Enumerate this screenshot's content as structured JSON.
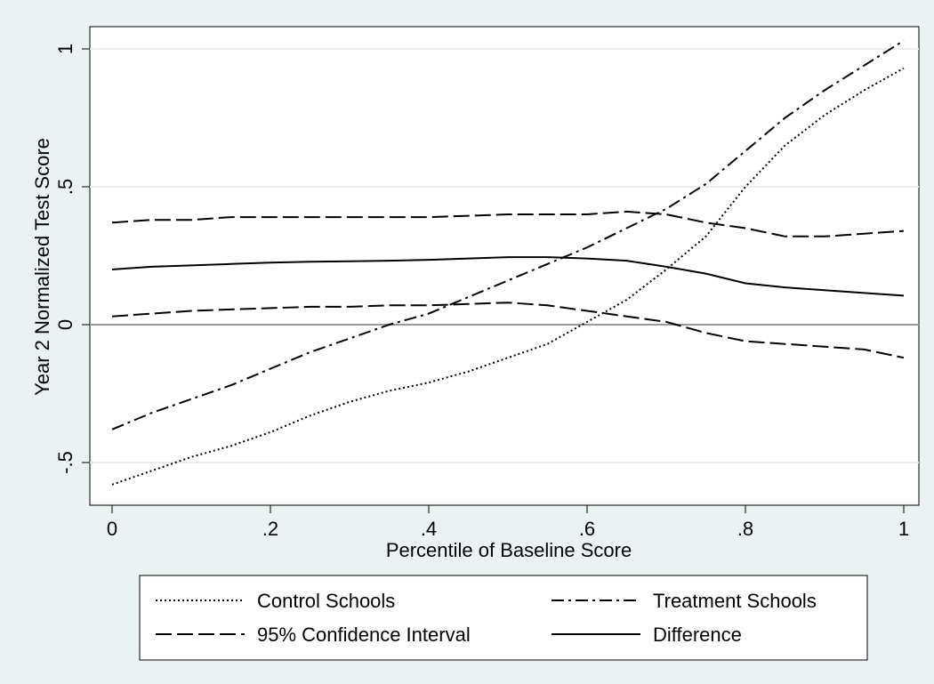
{
  "chart_data": {
    "type": "line",
    "xlabel": "Percentile of Baseline Score",
    "ylabel": "Year 2 Normalized Test Score",
    "xlim": [
      0,
      1
    ],
    "ylim": [
      -0.58,
      1.03
    ],
    "x_ticks": [
      0,
      0.2,
      0.4,
      0.6,
      0.8,
      1
    ],
    "x_tick_labels": [
      "0",
      ".2",
      ".4",
      ".6",
      ".8",
      "1"
    ],
    "y_ticks": [
      -0.5,
      0,
      0.5,
      1
    ],
    "y_tick_labels": [
      "-.5",
      "0",
      ".5",
      "1"
    ],
    "reference_line_y": 0,
    "grid": "horizontal",
    "legend_position": "bottom",
    "series": [
      {
        "name": "Control Schools",
        "style": "dotted",
        "x": [
          0,
          0.05,
          0.1,
          0.15,
          0.2,
          0.25,
          0.3,
          0.35,
          0.4,
          0.45,
          0.5,
          0.55,
          0.6,
          0.65,
          0.7,
          0.75,
          0.8,
          0.85,
          0.9,
          0.95,
          1
        ],
        "y": [
          -0.58,
          -0.53,
          -0.48,
          -0.44,
          -0.39,
          -0.33,
          -0.28,
          -0.24,
          -0.21,
          -0.17,
          -0.12,
          -0.07,
          0.01,
          0.09,
          0.2,
          0.32,
          0.5,
          0.65,
          0.76,
          0.85,
          0.93
        ]
      },
      {
        "name": "Treatment Schools",
        "style": "dash-dot",
        "x": [
          0,
          0.05,
          0.1,
          0.15,
          0.2,
          0.25,
          0.3,
          0.35,
          0.4,
          0.45,
          0.5,
          0.55,
          0.6,
          0.65,
          0.7,
          0.75,
          0.8,
          0.85,
          0.9,
          0.95,
          1
        ],
        "y": [
          -0.38,
          -0.32,
          -0.27,
          -0.22,
          -0.16,
          -0.1,
          -0.05,
          0,
          0.04,
          0.1,
          0.16,
          0.22,
          0.28,
          0.35,
          0.42,
          0.51,
          0.63,
          0.75,
          0.85,
          0.94,
          1.03
        ]
      },
      {
        "name": "95% Confidence Interval",
        "style": "dashed",
        "group": "upper",
        "x": [
          0,
          0.05,
          0.1,
          0.15,
          0.2,
          0.25,
          0.3,
          0.35,
          0.4,
          0.45,
          0.5,
          0.55,
          0.6,
          0.65,
          0.7,
          0.75,
          0.8,
          0.85,
          0.9,
          0.95,
          1
        ],
        "y": [
          0.37,
          0.38,
          0.38,
          0.39,
          0.39,
          0.39,
          0.39,
          0.39,
          0.39,
          0.395,
          0.4,
          0.4,
          0.4,
          0.41,
          0.4,
          0.37,
          0.35,
          0.32,
          0.32,
          0.33,
          0.34
        ]
      },
      {
        "name": "95% Confidence Interval",
        "style": "dashed",
        "group": "lower",
        "x": [
          0,
          0.05,
          0.1,
          0.15,
          0.2,
          0.25,
          0.3,
          0.35,
          0.4,
          0.45,
          0.5,
          0.55,
          0.6,
          0.65,
          0.7,
          0.75,
          0.8,
          0.85,
          0.9,
          0.95,
          1
        ],
        "y": [
          0.03,
          0.04,
          0.05,
          0.055,
          0.06,
          0.065,
          0.065,
          0.07,
          0.07,
          0.075,
          0.08,
          0.07,
          0.05,
          0.03,
          0.01,
          -0.03,
          -0.06,
          -0.07,
          -0.08,
          -0.09,
          -0.12
        ]
      },
      {
        "name": "Difference",
        "style": "solid",
        "x": [
          0,
          0.05,
          0.1,
          0.15,
          0.2,
          0.25,
          0.3,
          0.35,
          0.4,
          0.45,
          0.5,
          0.55,
          0.6,
          0.65,
          0.7,
          0.75,
          0.8,
          0.85,
          0.9,
          0.95,
          1
        ],
        "y": [
          0.2,
          0.21,
          0.215,
          0.22,
          0.225,
          0.228,
          0.23,
          0.232,
          0.235,
          0.24,
          0.245,
          0.245,
          0.24,
          0.232,
          0.21,
          0.185,
          0.15,
          0.135,
          0.125,
          0.115,
          0.105
        ]
      }
    ],
    "legend": [
      {
        "label": "Control Schools",
        "style": "dotted"
      },
      {
        "label": "Treatment Schools",
        "style": "dash-dot"
      },
      {
        "label": "95% Confidence Interval",
        "style": "dashed"
      },
      {
        "label": "Difference",
        "style": "solid"
      }
    ]
  }
}
